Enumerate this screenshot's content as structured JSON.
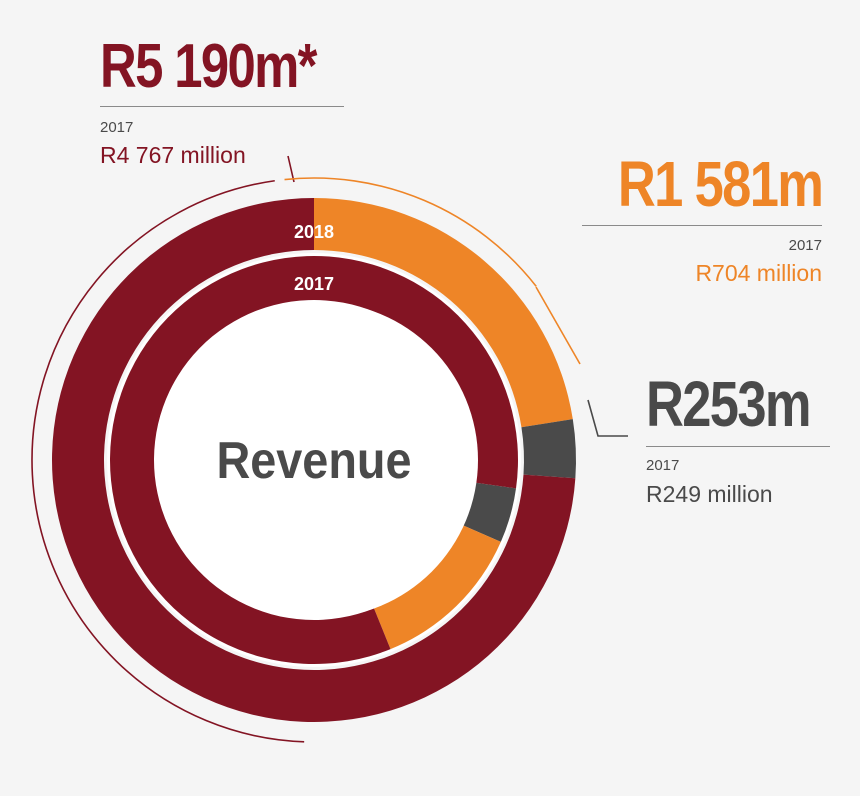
{
  "colors": {
    "maroon": "#831423",
    "orange": "#ee8527",
    "grey": "#4a4a4a",
    "ring_gap": "#ffffff",
    "center_text": "#4a4a4a",
    "background": "#f5f5f5"
  },
  "chart_data": {
    "type": "donut",
    "center_label": "Revenue",
    "rings": [
      {
        "name": "2018",
        "label": "2018",
        "segments": [
          {
            "label": "R5 190m*",
            "value": 5190,
            "color": "maroon"
          },
          {
            "label": "R1 581m",
            "value": 1581,
            "color": "orange"
          },
          {
            "label": "R253m",
            "value": 253,
            "color": "grey"
          }
        ]
      },
      {
        "name": "2017",
        "label": "2017",
        "segments": [
          {
            "label": "R4 767 million",
            "value": 4767,
            "color": "maroon"
          },
          {
            "label": "R704 million",
            "value": 704,
            "color": "orange"
          },
          {
            "label": "R249 million",
            "value": 249,
            "color": "grey"
          }
        ]
      }
    ]
  },
  "callouts": {
    "maroon": {
      "value_2018": "R5 190m*",
      "year_label": "2017",
      "value_2017": "R4 767 million"
    },
    "orange": {
      "value_2018": "R1 581m",
      "year_label": "2017",
      "value_2017": "R704 million"
    },
    "grey": {
      "value_2018": "R253m",
      "year_label": "2017",
      "value_2017": "R249 million"
    }
  }
}
